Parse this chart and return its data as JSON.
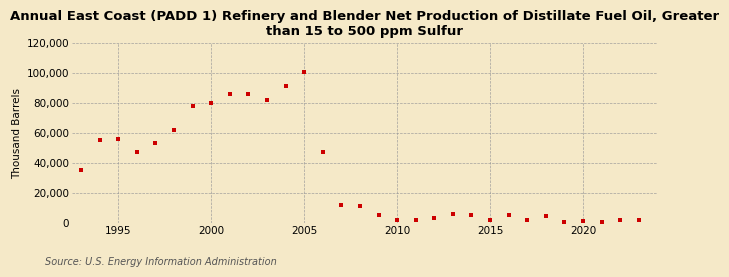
{
  "title": "Annual East Coast (PADD 1) Refinery and Blender Net Production of Distillate Fuel Oil, Greater\nthan 15 to 500 ppm Sulfur",
  "ylabel": "Thousand Barrels",
  "source": "Source: U.S. Energy Information Administration",
  "background_color": "#f5e9c8",
  "plot_background_color": "#f5e9c8",
  "marker_color": "#cc0000",
  "marker": "s",
  "marker_size": 3.5,
  "years": [
    1993,
    1994,
    1995,
    1996,
    1997,
    1998,
    1999,
    2000,
    2001,
    2002,
    2003,
    2004,
    2005,
    2006,
    2007,
    2008,
    2009,
    2010,
    2011,
    2012,
    2013,
    2014,
    2015,
    2016,
    2017,
    2018,
    2019,
    2020,
    2021,
    2022,
    2023
  ],
  "values": [
    35000,
    55000,
    56000,
    47000,
    53000,
    62000,
    78000,
    80000,
    86000,
    86000,
    82000,
    91000,
    101000,
    47000,
    12000,
    11000,
    5000,
    1500,
    1500,
    3000,
    5500,
    5000,
    2000,
    5000,
    1500,
    4500,
    500,
    1000,
    500,
    1500,
    2000
  ],
  "ylim": [
    0,
    120000
  ],
  "yticks": [
    0,
    20000,
    40000,
    60000,
    80000,
    100000,
    120000
  ],
  "xlim": [
    1992.5,
    2024
  ],
  "xticks": [
    1995,
    2000,
    2005,
    2010,
    2015,
    2020
  ],
  "title_fontsize": 9.5,
  "tick_fontsize": 7.5,
  "ylabel_fontsize": 7.5,
  "source_fontsize": 7
}
